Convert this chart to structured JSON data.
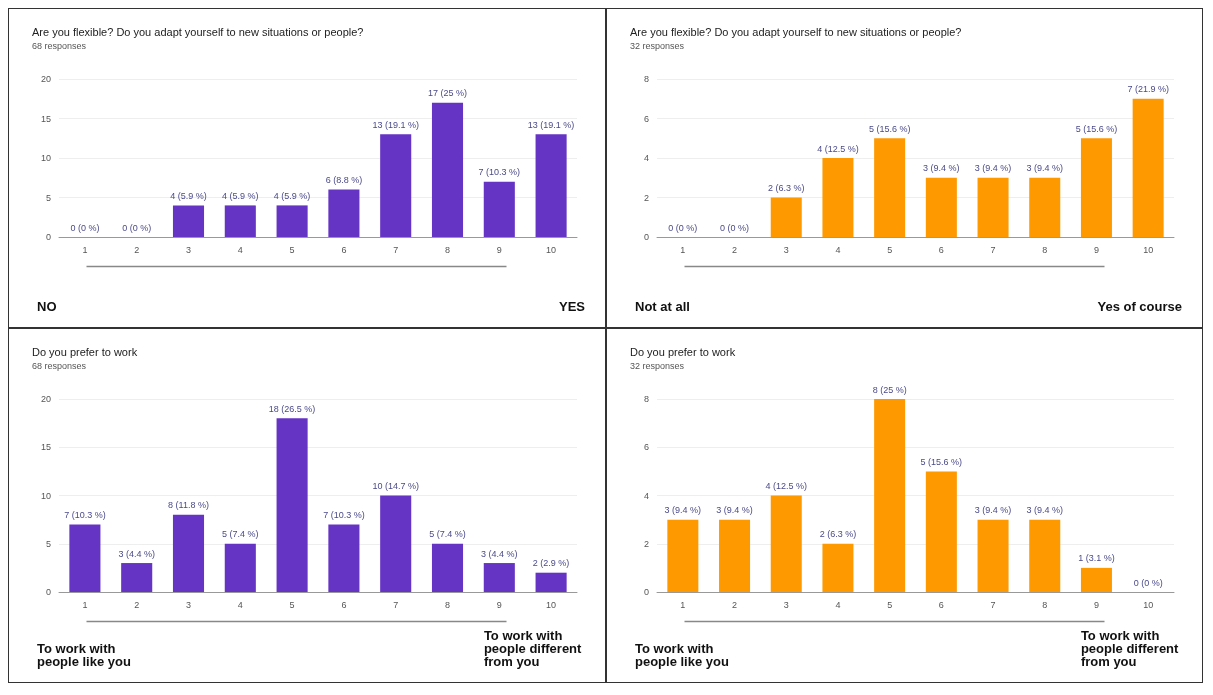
{
  "chart_data": [
    {
      "type": "bar",
      "title": "Are you flexible? Do you adapt yourself to new situations or people?",
      "subtitle": "68 responses",
      "categories": [
        "1",
        "2",
        "3",
        "4",
        "5",
        "6",
        "7",
        "8",
        "9",
        "10"
      ],
      "values": [
        0,
        0,
        4,
        4,
        4,
        6,
        13,
        17,
        7,
        13
      ],
      "value_labels": [
        "0 (0 %)",
        "0 (0 %)",
        "4 (5.9 %)",
        "4 (5.9 %)",
        "4 (5.9 %)",
        "6 (8.8 %)",
        "13 (19.1 %)",
        "17 (25 %)",
        "7 (10.3 %)",
        "13 (19.1 %)"
      ],
      "color": "#6634c4",
      "ylim": [
        0,
        20
      ],
      "yticks": [
        0,
        5,
        10,
        15,
        20
      ],
      "grid": "y",
      "annotations": [
        "NO",
        "YES"
      ]
    },
    {
      "type": "bar",
      "title": "Are you flexible? Do you adapt yourself to new situations or people?",
      "subtitle": "32 responses",
      "categories": [
        "1",
        "2",
        "3",
        "4",
        "5",
        "6",
        "7",
        "8",
        "9",
        "10"
      ],
      "values": [
        0,
        0,
        2,
        4,
        5,
        3,
        3,
        3,
        5,
        7
      ],
      "value_labels": [
        "0 (0 %)",
        "0 (0 %)",
        "2 (6.3 %)",
        "4 (12.5 %)",
        "5 (15.6 %)",
        "3 (9.4 %)",
        "3 (9.4 %)",
        "3 (9.4 %)",
        "5 (15.6 %)",
        "7 (21.9 %)"
      ],
      "color": "#ff9900",
      "ylim": [
        0,
        8
      ],
      "yticks": [
        0,
        2,
        4,
        6,
        8
      ],
      "grid": "y",
      "annotations": [
        "Not at all",
        "Yes of course"
      ]
    },
    {
      "type": "bar",
      "title": "Do you prefer to work",
      "subtitle": "68 responses",
      "categories": [
        "1",
        "2",
        "3",
        "4",
        "5",
        "6",
        "7",
        "8",
        "9",
        "10"
      ],
      "values": [
        7,
        3,
        8,
        5,
        18,
        7,
        10,
        5,
        3,
        2
      ],
      "value_labels": [
        "7 (10.3 %)",
        "3 (4.4 %)",
        "8 (11.8 %)",
        "5 (7.4 %)",
        "18 (26.5 %)",
        "7 (10.3 %)",
        "10 (14.7 %)",
        "5 (7.4 %)",
        "3 (4.4 %)",
        "2 (2.9 %)"
      ],
      "color": "#6634c4",
      "ylim": [
        0,
        20
      ],
      "yticks": [
        0,
        5,
        10,
        15,
        20
      ],
      "grid": "y",
      "annotations": [
        "To work with people like you",
        "To work with people different from you"
      ]
    },
    {
      "type": "bar",
      "title": "Do you prefer to work",
      "subtitle": "32 responses",
      "categories": [
        "1",
        "2",
        "3",
        "4",
        "5",
        "6",
        "7",
        "8",
        "9",
        "10"
      ],
      "values": [
        3,
        3,
        4,
        2,
        8,
        5,
        3,
        3,
        1,
        0
      ],
      "value_labels": [
        "3 (9.4 %)",
        "3 (9.4 %)",
        "4 (12.5 %)",
        "2 (6.3 %)",
        "8 (25 %)",
        "5 (15.6 %)",
        "3 (9.4 %)",
        "3 (9.4 %)",
        "1 (3.1 %)",
        "0 (0 %)"
      ],
      "color": "#ff9900",
      "ylim": [
        0,
        8
      ],
      "yticks": [
        0,
        2,
        4,
        6,
        8
      ],
      "grid": "y",
      "annotations": [
        "To work with people like you",
        "To work with people different from you"
      ]
    }
  ]
}
